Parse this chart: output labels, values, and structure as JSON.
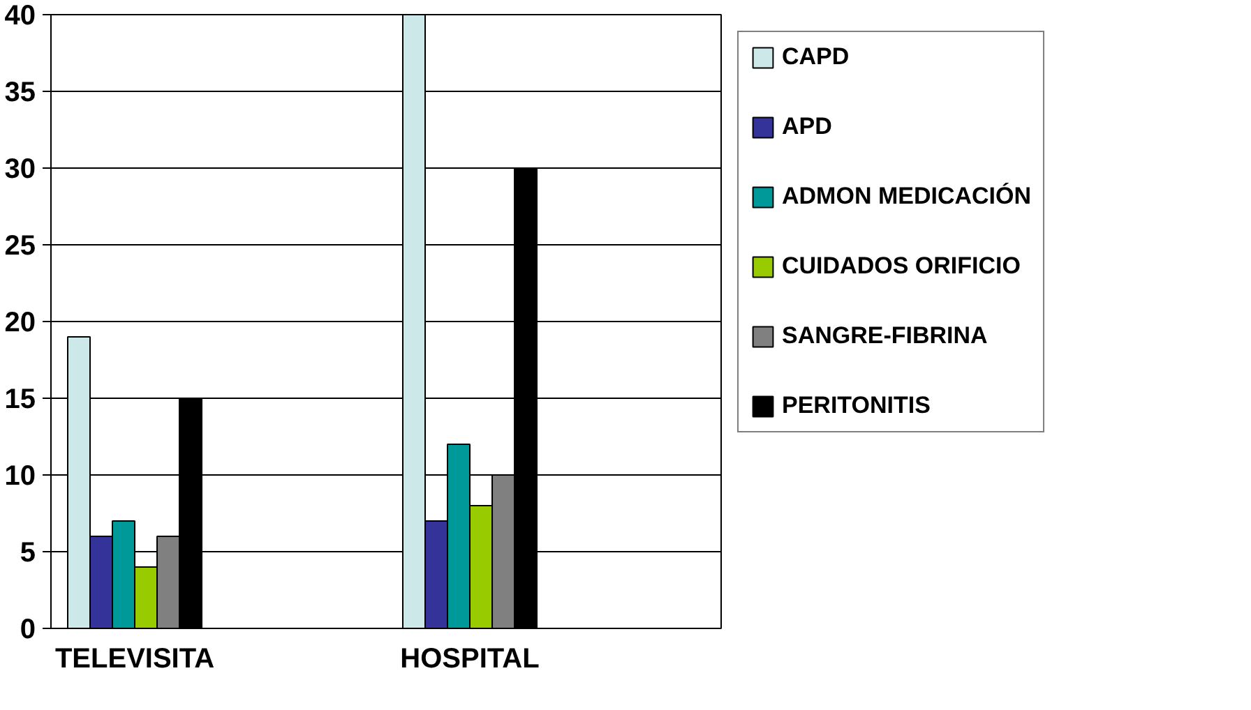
{
  "chart_data": {
    "type": "bar",
    "categories": [
      "TELEVISITA",
      null,
      "HOSPITAL",
      null
    ],
    "series": [
      {
        "name": "CAPD",
        "color": "#cce8e8",
        "values": [
          19,
          null,
          40,
          null
        ]
      },
      {
        "name": "APD",
        "color": "#333399",
        "values": [
          6,
          null,
          7,
          null
        ]
      },
      {
        "name": "ADMON MEDICACIÓN",
        "color": "#009999",
        "values": [
          7,
          null,
          12,
          null
        ]
      },
      {
        "name": "CUIDADOS ORIFICIO",
        "color": "#99cc00",
        "values": [
          4,
          null,
          8,
          null
        ]
      },
      {
        "name": "SANGRE-FIBRINA",
        "color": "#808080",
        "values": [
          6,
          null,
          10,
          null
        ]
      },
      {
        "name": "PERITONITIS",
        "color": "#000000",
        "values": [
          15,
          null,
          30,
          null
        ]
      }
    ],
    "ylim": [
      0,
      40
    ],
    "yticks": [
      0,
      5,
      10,
      15,
      20,
      25,
      30,
      35,
      40
    ],
    "grid": "y",
    "legend": "right"
  }
}
